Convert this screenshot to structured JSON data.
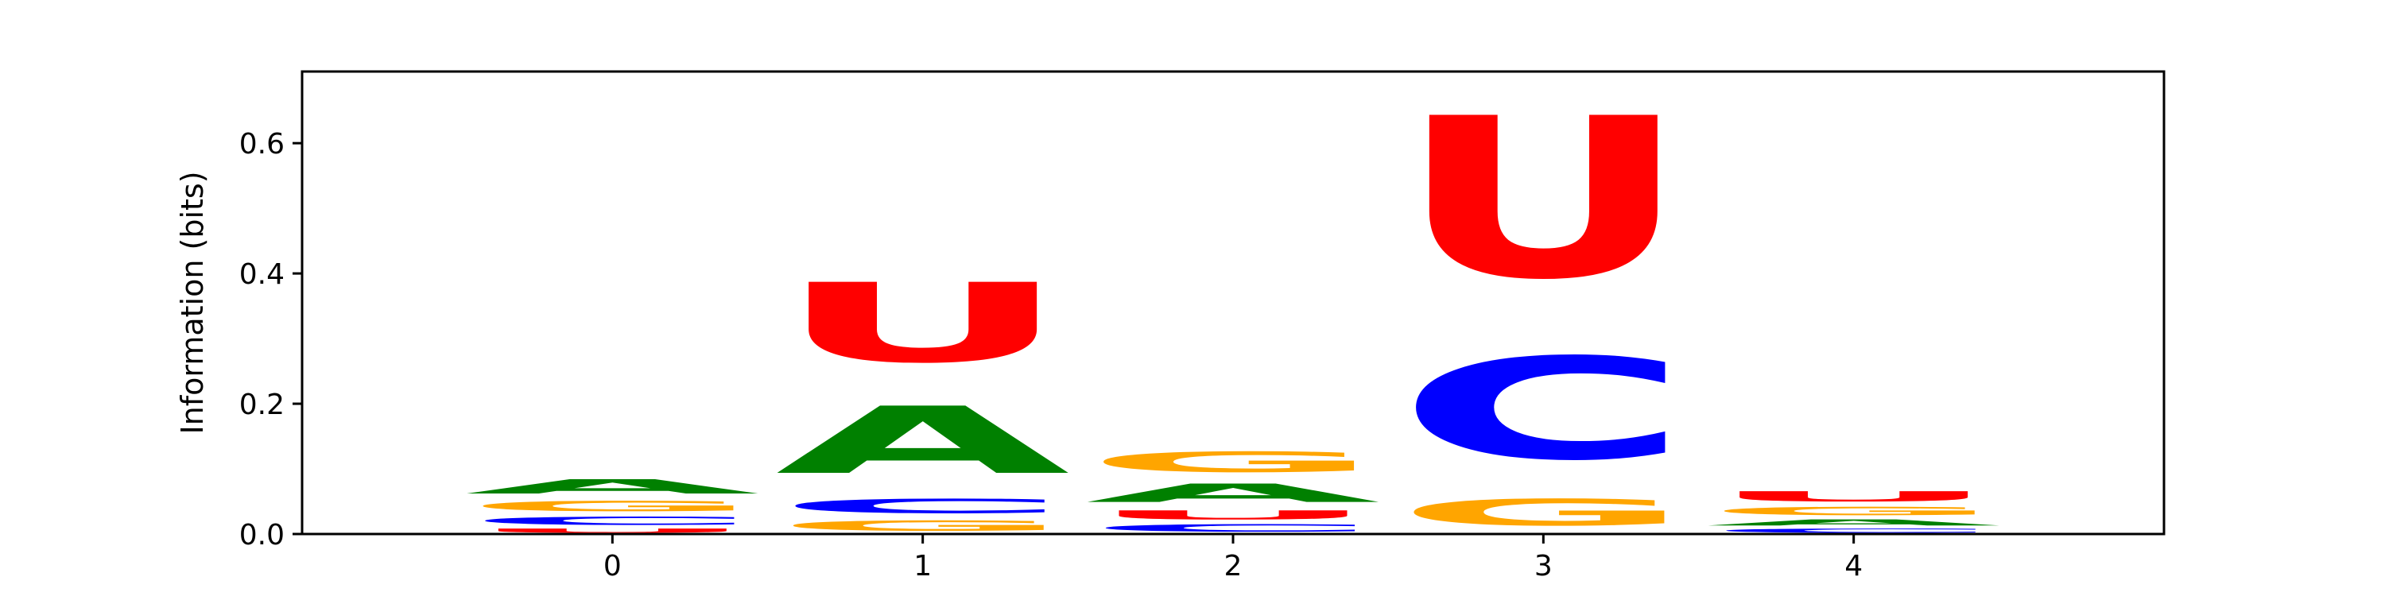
{
  "chart_data": {
    "type": "sequence-logo",
    "ylabel": "Information (bits)",
    "xlabel": "",
    "title": "",
    "ylim": [
      0,
      0.71
    ],
    "yticks": [
      0.0,
      0.2,
      0.4,
      0.6
    ],
    "ytick_labels": [
      "0.0",
      "0.2",
      "0.4",
      "0.6"
    ],
    "xlim": [
      -1,
      5
    ],
    "xticks": [
      0,
      1,
      2,
      3,
      4
    ],
    "xtick_labels": [
      "0",
      "1",
      "2",
      "3",
      "4"
    ],
    "grid": false,
    "letter_colors": {
      "A": "#008000",
      "C": "#0000ff",
      "G": "#ffa500",
      "U": "#ff0000"
    },
    "positions": [
      {
        "x": 0,
        "stack": [
          {
            "letter": "U",
            "height": 0.01
          },
          {
            "letter": "C",
            "height": 0.02
          },
          {
            "letter": "G",
            "height": 0.025
          },
          {
            "letter": "A",
            "height": 0.035
          }
        ]
      },
      {
        "x": 1,
        "stack": [
          {
            "letter": "G",
            "height": 0.025
          },
          {
            "letter": "C",
            "height": 0.035
          },
          {
            "letter": "A",
            "height": 0.165
          },
          {
            "letter": "U",
            "height": 0.195
          }
        ]
      },
      {
        "x": 2,
        "stack": [
          {
            "letter": "C",
            "height": 0.018
          },
          {
            "letter": "U",
            "height": 0.022
          },
          {
            "letter": "A",
            "height": 0.045
          },
          {
            "letter": "G",
            "height": 0.05
          }
        ]
      },
      {
        "x": 3,
        "stack": [
          {
            "letter": "G",
            "height": 0.065
          },
          {
            "letter": "C",
            "height": 0.25
          },
          {
            "letter": "U",
            "height": 0.395
          }
        ]
      },
      {
        "x": 4,
        "stack": [
          {
            "letter": "C",
            "height": 0.01
          },
          {
            "letter": "A",
            "height": 0.015
          },
          {
            "letter": "G",
            "height": 0.02
          },
          {
            "letter": "U",
            "height": 0.025
          }
        ]
      }
    ]
  }
}
